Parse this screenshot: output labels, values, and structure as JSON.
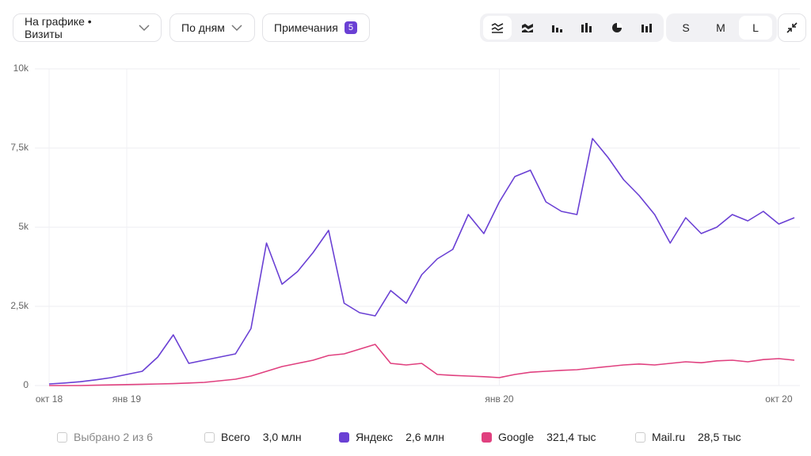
{
  "toolbar": {
    "metric": "На графике • Визиты",
    "period": "По дням",
    "notes": "Примечания",
    "notes_count": "5",
    "sizes": [
      "S",
      "M",
      "L"
    ]
  },
  "chart_data": {
    "type": "line",
    "categories": [
      "окт 18",
      null,
      null,
      null,
      null,
      "янв 19",
      null,
      null,
      null,
      null,
      null,
      null,
      null,
      null,
      null,
      null,
      null,
      null,
      null,
      null,
      null,
      null,
      null,
      null,
      null,
      null,
      null,
      null,
      null,
      "янв 20",
      null,
      null,
      null,
      null,
      null,
      null,
      null,
      null,
      null,
      null,
      null,
      null,
      null,
      null,
      null,
      null,
      null,
      "окт 20",
      null
    ],
    "series": [
      {
        "name": "Яндекс",
        "total": "2,6 млн",
        "color": "#6a40d4",
        "values": [
          50,
          80,
          120,
          180,
          250,
          350,
          450,
          900,
          1600,
          700,
          800,
          900,
          1000,
          1800,
          4500,
          3200,
          3600,
          4200,
          4900,
          2600,
          2300,
          2200,
          3000,
          2600,
          3500,
          4000,
          4300,
          5400,
          4800,
          5800,
          6600,
          6800,
          5800,
          5500,
          5400,
          7800,
          7200,
          6500,
          6000,
          5400,
          4500,
          5300,
          4800,
          5000,
          5400,
          5200,
          5500,
          5100,
          5300
        ]
      },
      {
        "name": "Google",
        "total": "321,4 тыс",
        "color": "#e0407f",
        "values": [
          0,
          0,
          0,
          10,
          20,
          30,
          40,
          50,
          60,
          80,
          100,
          150,
          200,
          300,
          450,
          600,
          700,
          800,
          950,
          1000,
          1150,
          1300,
          700,
          650,
          700,
          350,
          320,
          300,
          280,
          250,
          350,
          420,
          450,
          480,
          500,
          550,
          600,
          650,
          680,
          650,
          700,
          750,
          720,
          780,
          800,
          750,
          820,
          850,
          800
        ]
      }
    ],
    "ylim": [
      0,
      10000
    ],
    "yticks": [
      0,
      {
        "value": 2500,
        "label": "2,5k"
      },
      {
        "value": 5000,
        "label": "5k"
      },
      {
        "value": 7500,
        "label": "7,5k"
      },
      {
        "value": 10000,
        "label": "10k"
      }
    ],
    "grid": true
  },
  "legend": {
    "selected": "Выбрано 2 из 6",
    "others": [
      {
        "name": "Всего",
        "total": "3,0 млн"
      },
      {
        "name": "Mail.ru",
        "total": "28,5 тыс"
      }
    ]
  }
}
